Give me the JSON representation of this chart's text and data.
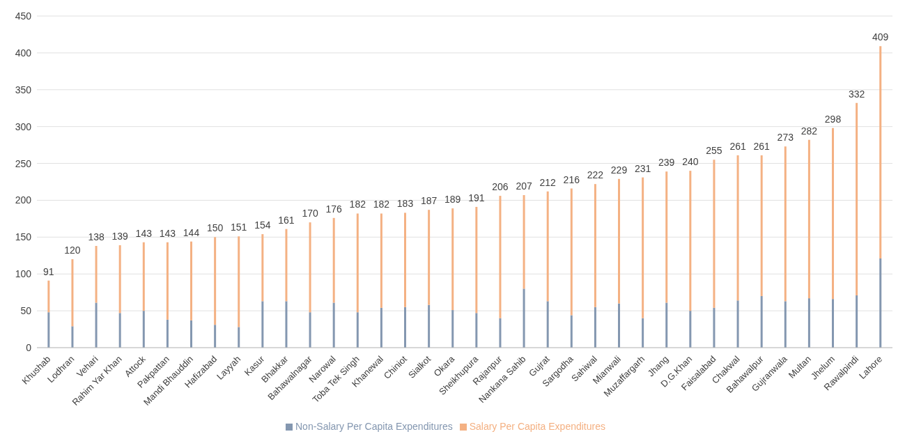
{
  "chart_data": {
    "type": "bar",
    "stacked": true,
    "categories": [
      "Khushab",
      "Lodhran",
      "Vehari",
      "Rahim Yar Khan",
      "Attock",
      "Pakpattan",
      "Mandi Bhauddin",
      "Hafizabad",
      "Layyah",
      "Kasur",
      "Bhakkar",
      "Bahawalnagar",
      "Narowal",
      "Toba Tek Singh",
      "Khanewal",
      "Chiniot",
      "Sialkot",
      "Okara",
      "Sheikhupura",
      "Rajanpur",
      "Nankana Sahib",
      "Gujrat",
      "Sargodha",
      "Sahiwal",
      "Mianwali",
      "Muzaffargarh",
      "Jhang",
      "D.G.Khan",
      "Faisalabad",
      "Chakwal",
      "Bahawalpur",
      "Gujranwala",
      "Multan",
      "Jhelum",
      "Rawalpindi",
      "Lahore"
    ],
    "series": [
      {
        "name": "Non-Salary Per Capita Expenditures",
        "color": "#8497b0",
        "values": [
          48,
          29,
          61,
          47,
          50,
          38,
          37,
          31,
          28,
          63,
          63,
          48,
          61,
          48,
          54,
          55,
          58,
          51,
          47,
          40,
          80,
          63,
          44,
          55,
          60,
          40,
          61,
          50,
          54,
          64,
          70,
          63,
          67,
          66,
          71,
          121
        ]
      },
      {
        "name": "Salary Per Capita Expenditures",
        "color": "#f4b183",
        "values": [
          43,
          91,
          77,
          92,
          93,
          105,
          107,
          119,
          123,
          91,
          98,
          122,
          115,
          134,
          128,
          128,
          129,
          138,
          144,
          166,
          127,
          149,
          172,
          167,
          169,
          191,
          178,
          190,
          201,
          197,
          191,
          210,
          215,
          232,
          261,
          288
        ]
      }
    ],
    "totals": [
      "91",
      "120",
      "138",
      "139",
      "143",
      "143",
      "144",
      "150",
      "151",
      "154",
      "161",
      "170",
      "176",
      "182",
      "182",
      "183",
      "187",
      "189",
      "191",
      "206",
      "207",
      "212",
      "216",
      "222",
      "229",
      "231",
      "239",
      "240",
      "255",
      "261",
      "261",
      "273",
      "282",
      "298",
      "332",
      "409"
    ],
    "ylim": [
      0,
      450
    ],
    "yticks": [
      0,
      50,
      100,
      150,
      200,
      250,
      300,
      350,
      400,
      450
    ],
    "grid": "y",
    "legend": "bottom"
  }
}
